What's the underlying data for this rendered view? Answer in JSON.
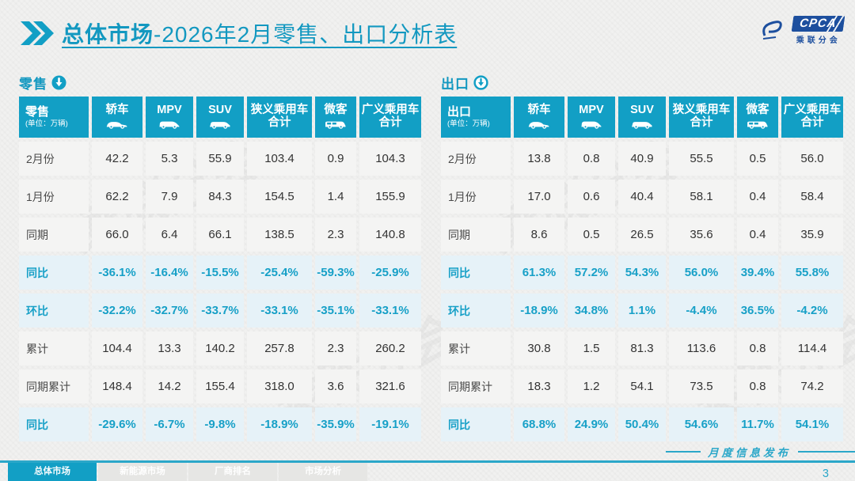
{
  "header": {
    "title_bold": "总体市场",
    "title_rest": "-2026年2月零售、出口分析表",
    "logo": {
      "acronym": "CPCA",
      "name": "乘联分会"
    }
  },
  "watermark": "乘联分会",
  "colors": {
    "accent_cyan": "#129FC5",
    "percent_text": "#17A0C7",
    "value_row_bg": "#F4F4F3",
    "percent_row_bg": "#E6F2F8",
    "logo_blue": "#1D4F9E",
    "footer_line": "#2BA7C9"
  },
  "retail": {
    "label": "零售",
    "unit": "(单位：万辆)",
    "columns": [
      {
        "key": "sedan",
        "label": "轿车",
        "icon": "sedan-icon"
      },
      {
        "key": "mpv",
        "label": "MPV",
        "icon": "mpv-icon"
      },
      {
        "key": "suv",
        "label": "SUV",
        "icon": "suv-icon"
      },
      {
        "key": "narrow-total",
        "label": "狭义乘用车",
        "label2": "合计",
        "icon": null
      },
      {
        "key": "microvan",
        "label": "微客",
        "icon": "van-icon"
      },
      {
        "key": "broad-total",
        "label": "广义乘用车",
        "label2": "合计",
        "icon": null
      }
    ],
    "rows": [
      {
        "label": "2月份",
        "type": "value",
        "cells": [
          "42.2",
          "5.3",
          "55.9",
          "103.4",
          "0.9",
          "104.3"
        ]
      },
      {
        "label": "1月份",
        "type": "value",
        "cells": [
          "62.2",
          "7.9",
          "84.3",
          "154.5",
          "1.4",
          "155.9"
        ]
      },
      {
        "label": "同期",
        "type": "value",
        "cells": [
          "66.0",
          "6.4",
          "66.1",
          "138.5",
          "2.3",
          "140.8"
        ]
      },
      {
        "label": "同比",
        "type": "pct",
        "cells": [
          "-36.1%",
          "-16.4%",
          "-15.5%",
          "-25.4%",
          "-59.3%",
          "-25.9%"
        ]
      },
      {
        "label": "环比",
        "type": "pct",
        "cells": [
          "-32.2%",
          "-32.7%",
          "-33.7%",
          "-33.1%",
          "-35.1%",
          "-33.1%"
        ]
      },
      {
        "label": "累计",
        "type": "value",
        "cells": [
          "104.4",
          "13.3",
          "140.2",
          "257.8",
          "2.3",
          "260.2"
        ]
      },
      {
        "label": "同期累计",
        "type": "value",
        "cells": [
          "148.4",
          "14.2",
          "155.4",
          "318.0",
          "3.6",
          "321.6"
        ]
      },
      {
        "label": "同比",
        "type": "pct",
        "cells": [
          "-29.6%",
          "-6.7%",
          "-9.8%",
          "-18.9%",
          "-35.9%",
          "-19.1%"
        ]
      }
    ]
  },
  "export": {
    "label": "出口",
    "unit": "(单位：万辆)",
    "columns": [
      {
        "key": "sedan",
        "label": "轿车",
        "icon": "sedan-icon"
      },
      {
        "key": "mpv",
        "label": "MPV",
        "icon": "mpv-icon"
      },
      {
        "key": "suv",
        "label": "SUV",
        "icon": "suv-icon"
      },
      {
        "key": "narrow-total",
        "label": "狭义乘用车",
        "label2": "合计",
        "icon": null
      },
      {
        "key": "microvan",
        "label": "微客",
        "icon": "van-icon"
      },
      {
        "key": "broad-total",
        "label": "广义乘用车",
        "label2": "合计",
        "icon": null
      }
    ],
    "rows": [
      {
        "label": "2月份",
        "type": "value",
        "cells": [
          "13.8",
          "0.8",
          "40.9",
          "55.5",
          "0.5",
          "56.0"
        ]
      },
      {
        "label": "1月份",
        "type": "value",
        "cells": [
          "17.0",
          "0.6",
          "40.4",
          "58.1",
          "0.4",
          "58.4"
        ]
      },
      {
        "label": "同期",
        "type": "value",
        "cells": [
          "8.6",
          "0.5",
          "26.5",
          "35.6",
          "0.4",
          "35.9"
        ]
      },
      {
        "label": "同比",
        "type": "pct",
        "cells": [
          "61.3%",
          "57.2%",
          "54.3%",
          "56.0%",
          "39.4%",
          "55.8%"
        ]
      },
      {
        "label": "环比",
        "type": "pct",
        "cells": [
          "-18.9%",
          "34.8%",
          "1.1%",
          "-4.4%",
          "36.5%",
          "-4.2%"
        ]
      },
      {
        "label": "累计",
        "type": "value",
        "cells": [
          "30.8",
          "1.5",
          "81.3",
          "113.6",
          "0.8",
          "114.4"
        ]
      },
      {
        "label": "同期累计",
        "type": "value",
        "cells": [
          "18.3",
          "1.2",
          "54.1",
          "73.5",
          "0.8",
          "74.2"
        ]
      },
      {
        "label": "同比",
        "type": "pct",
        "cells": [
          "68.8%",
          "24.9%",
          "50.4%",
          "54.6%",
          "11.7%",
          "54.1%"
        ]
      }
    ]
  },
  "footer": {
    "tabs": [
      {
        "label": "总体市场",
        "active": true
      },
      {
        "label": "新能源市场",
        "active": false
      },
      {
        "label": "厂商排名",
        "active": false
      },
      {
        "label": "市场分析",
        "active": false
      }
    ],
    "ribbon": "月度信息发布",
    "page": "3"
  }
}
